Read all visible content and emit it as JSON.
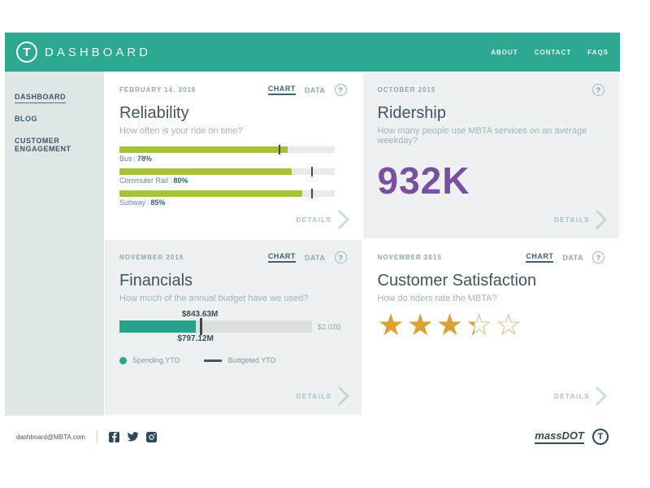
{
  "header": {
    "logo_letter": "T",
    "title": "DASHBOARD",
    "nav": [
      {
        "label": "ABOUT"
      },
      {
        "label": "CONTACT"
      },
      {
        "label": "FAQS"
      }
    ]
  },
  "sidebar": {
    "items": [
      {
        "label": "DASHBOARD",
        "active": true
      },
      {
        "label": "BLOG",
        "active": false
      },
      {
        "label": "CUSTOMER ENGAGEMENT",
        "active": false
      }
    ]
  },
  "cards": {
    "reliability": {
      "date": "FEBRUARY 14, 2016",
      "tab_chart": "CHART",
      "tab_data": "DATA",
      "help": "?",
      "title": "Reliability",
      "subtitle": "How often is your ride on time?",
      "details_label": "DETAILS",
      "chart_data": {
        "type": "bar",
        "unit": "percent on time",
        "max": 100,
        "bars": [
          {
            "name": "Bus",
            "sep": "|",
            "value": 78,
            "display": "78%",
            "target": 74
          },
          {
            "name": "Commuter Rail",
            "sep": "|",
            "value": 80,
            "display": "80%",
            "target": 89
          },
          {
            "name": "Subway",
            "sep": "|",
            "value": 85,
            "display": "85%",
            "target": 89
          }
        ],
        "bar_color": "#a5c239",
        "target_tick_color": "#3e4a50"
      }
    },
    "ridership": {
      "date": "OCTOBER 2015",
      "help": "?",
      "title": "Ridership",
      "subtitle": "How many people use MBTA services on an average weekday?",
      "value": "932K",
      "value_color": "#7b4fa0",
      "details_label": "DETAILS"
    },
    "financials": {
      "date": "NOVEMBER 2015",
      "tab_chart": "CHART",
      "tab_data": "DATA",
      "help": "?",
      "title": "Financials",
      "subtitle": "How much of the annual budget have we used?",
      "details_label": "DETAILS",
      "chart_data": {
        "type": "bar",
        "budgeted_ytd": "$843.63M",
        "spending_ytd": "$797.12M",
        "total_budget": "$2.02B",
        "spending_pct": 39.5,
        "budgeted_pct": 41.8,
        "legend_spending": "Spending YTD",
        "legend_budgeted": "Budgeted YTD",
        "bar_color": "#27a28b"
      }
    },
    "customer_satisfaction": {
      "date": "NOVEMBER 2015",
      "tab_chart": "CHART",
      "tab_data": "DATA",
      "help": "?",
      "title": "Customer Satisfaction",
      "subtitle": "How do riders rate the MBTA?",
      "details_label": "DETAILS",
      "chart_data": {
        "type": "rating",
        "rating": 3.3,
        "max_stars": 5,
        "star_color": "#d9a233"
      }
    }
  },
  "footer": {
    "email": "dashboard@MBTA.com",
    "social_icons": [
      "facebook",
      "twitter",
      "instagram"
    ],
    "massdot_label": "massDOT",
    "t_logo_letter": "T"
  },
  "colors": {
    "header_teal": "#2da891",
    "sidebar_bg": "#dfe6e8",
    "card_gray": "#eef1f1",
    "green_bar": "#a5c239",
    "purple": "#7b4fa0",
    "fin_teal": "#27a28b",
    "star_gold": "#d9a233"
  }
}
